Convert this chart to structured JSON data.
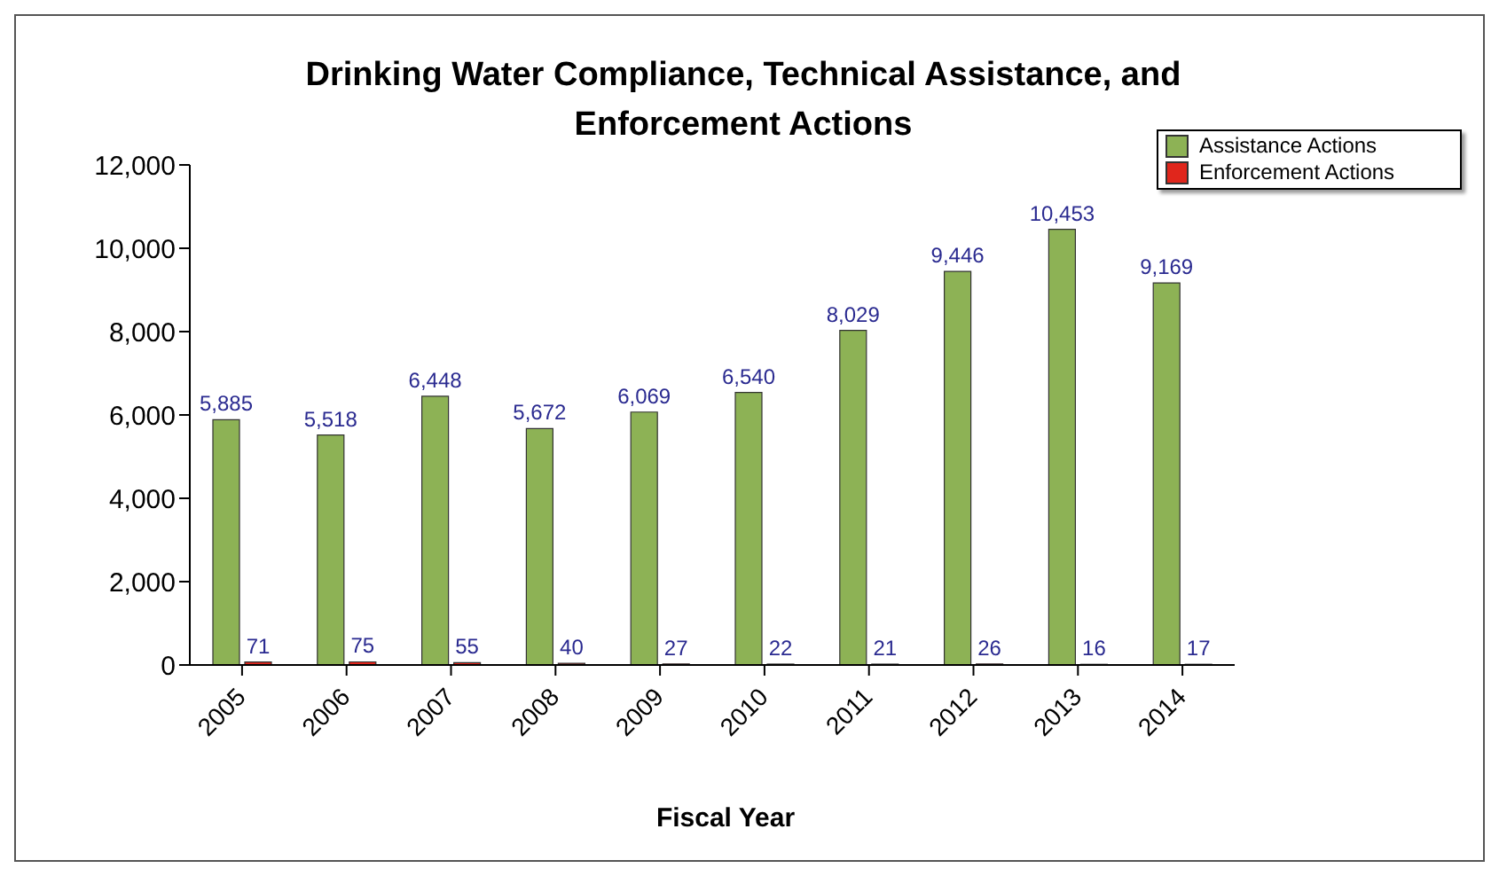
{
  "chart_data": {
    "type": "bar",
    "title": "Drinking Water Compliance, Technical Assistance, and Enforcement Actions",
    "xlabel": "Fiscal Year",
    "categories": [
      "2005",
      "2006",
      "2007",
      "2008",
      "2009",
      "2010",
      "2011",
      "2012",
      "2013",
      "2014"
    ],
    "series": [
      {
        "name": "Assistance Actions",
        "color": "#8db255",
        "values": [
          5885,
          5518,
          6448,
          5672,
          6069,
          6540,
          8029,
          9446,
          10453,
          9169
        ],
        "value_labels": [
          "5,885",
          "5,518",
          "6,448",
          "5,672",
          "6,069",
          "6,540",
          "8,029",
          "9,446",
          "10,453",
          "9,169"
        ]
      },
      {
        "name": "Enforcement Actions",
        "color": "#e0261c",
        "values": [
          71,
          75,
          55,
          40,
          27,
          22,
          21,
          26,
          16,
          17
        ],
        "value_labels": [
          "71",
          "75",
          "55",
          "40",
          "27",
          "22",
          "21",
          "26",
          "16",
          "17"
        ]
      }
    ],
    "ylim": [
      0,
      12000
    ],
    "yticks": [
      {
        "value": 0,
        "label": "0"
      },
      {
        "value": 2000,
        "label": "2,000"
      },
      {
        "value": 4000,
        "label": "4,000"
      },
      {
        "value": 6000,
        "label": "6,000"
      },
      {
        "value": 8000,
        "label": "8,000"
      },
      {
        "value": 10000,
        "label": "10,000"
      },
      {
        "value": 12000,
        "label": "12,000"
      }
    ],
    "legend": "top right"
  }
}
